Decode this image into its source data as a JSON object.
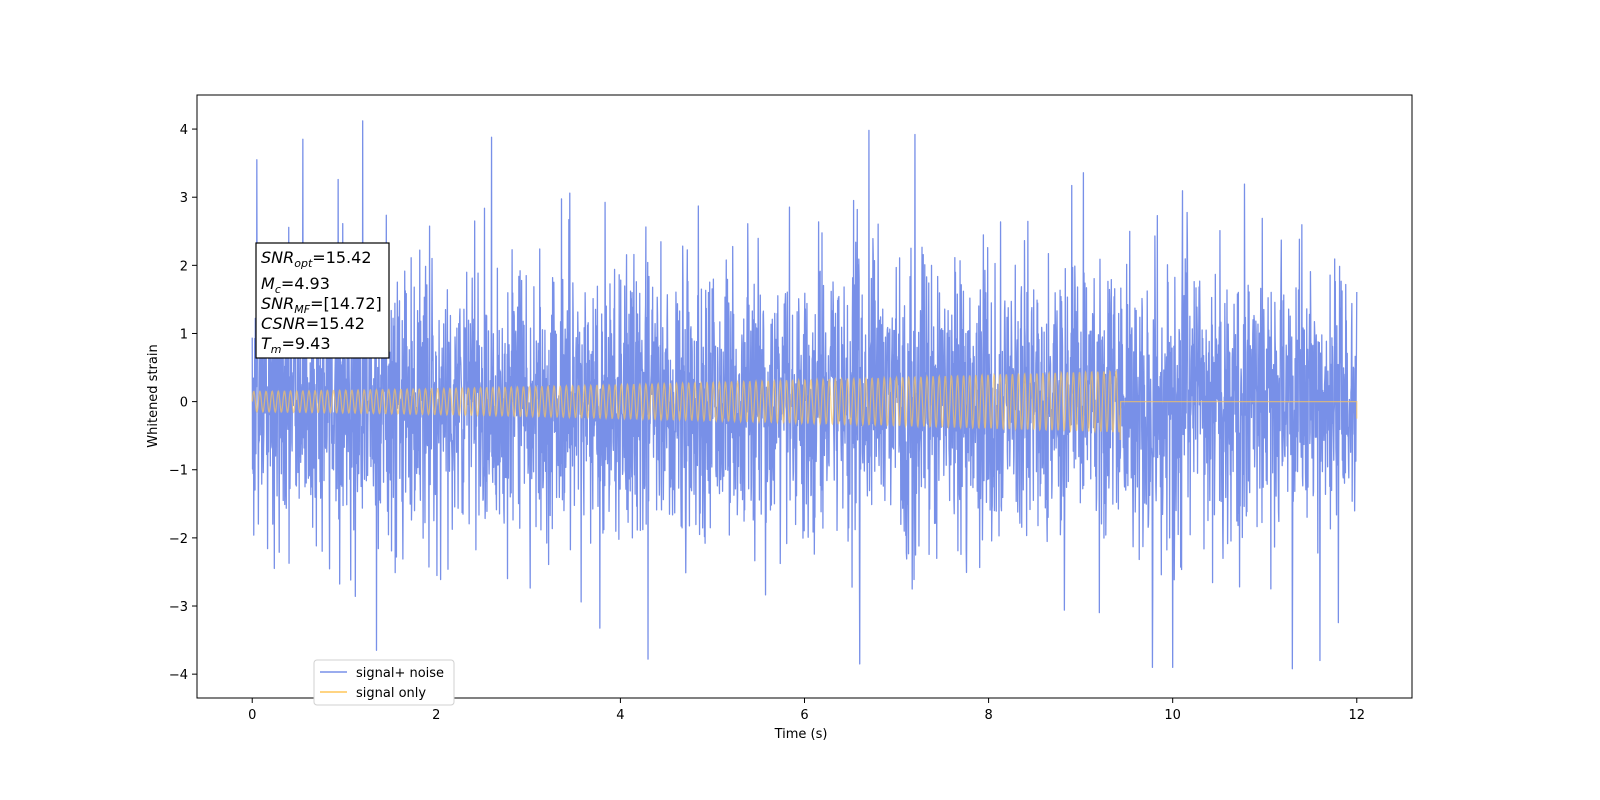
{
  "chart_data": {
    "type": "line",
    "xlabel": "Time (s)",
    "ylabel": "Whitened strain",
    "xlim": [
      -0.6,
      12.6
    ],
    "ylim": [
      -4.35,
      4.5
    ],
    "x_ticks": [
      "0",
      "2",
      "4",
      "6",
      "8",
      "10",
      "12"
    ],
    "y_ticks": [
      "4",
      "3",
      "2",
      "1",
      "0",
      "−1",
      "−2",
      "−3",
      "−4"
    ],
    "grid": false,
    "legend_position": "lower-left",
    "series": [
      {
        "name": "signal+ noise",
        "color": "#7890e8",
        "x_range": [
          0,
          12
        ],
        "description": "white-noise-like whitened strain, sampled densely",
        "typical_amplitude": 1.1,
        "peaks": [
          {
            "x": 0.05,
            "y": 3.55
          },
          {
            "x": 0.55,
            "y": 3.85
          },
          {
            "x": 1.2,
            "y": 4.12
          },
          {
            "x": 2.6,
            "y": 3.88
          },
          {
            "x": 6.7,
            "y": 3.98
          },
          {
            "x": 7.2,
            "y": 3.92
          },
          {
            "x": 1.35,
            "y": -3.65
          },
          {
            "x": 4.3,
            "y": -3.78
          },
          {
            "x": 6.6,
            "y": -3.85
          },
          {
            "x": 11.3,
            "y": -3.92
          },
          {
            "x": 11.6,
            "y": -3.8
          }
        ]
      },
      {
        "name": "signal only",
        "color": "#ffc658",
        "x_range": [
          0,
          12
        ],
        "chirp_end_x": 9.43,
        "amplitude_start": 0.15,
        "amplitude_end": 0.45,
        "post_merger_value": 0
      }
    ],
    "annotation": {
      "snr_opt_label": "SNR",
      "snr_opt_sub": "opt",
      "snr_opt_value": "=15.42",
      "mc_label": "M",
      "mc_sub": "c",
      "mc_value": "=4.93",
      "snr_mf_label": "SNR",
      "snr_mf_sub": "MF",
      "snr_mf_value": "=[14.72]",
      "csnr_label": "CSNR",
      "csnr_value": "=15.42",
      "tm_label": "T",
      "tm_sub": "m",
      "tm_value": "=9.43"
    }
  }
}
